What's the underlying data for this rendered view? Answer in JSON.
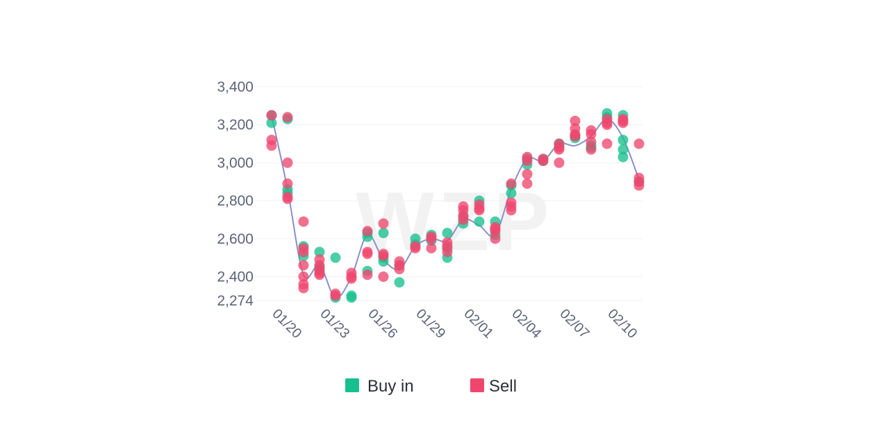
{
  "chart_data": {
    "type": "scatter",
    "title": "",
    "xlabel": "",
    "ylabel": "",
    "watermark": "WZP",
    "ylim": [
      2274,
      3400
    ],
    "yticks": [
      3400,
      3200,
      3000,
      2800,
      2600,
      2400,
      2274
    ],
    "ytick_labels": [
      "3,400",
      "3,200",
      "3,000",
      "2,800",
      "2,600",
      "2,400",
      "2,274"
    ],
    "xlim": [
      "01/20",
      "02/11"
    ],
    "xticks": [
      "01/20",
      "01/23",
      "01/26",
      "01/29",
      "02/01",
      "02/04",
      "02/07",
      "02/10"
    ],
    "grid": true,
    "legend_position": "bottom-center",
    "line": {
      "color": "#8a8fc9",
      "points": [
        [
          "01/20",
          3250
        ],
        [
          "01/21",
          2860
        ],
        [
          "01/22",
          2410
        ],
        [
          "01/23",
          2460
        ],
        [
          "01/24",
          2290
        ],
        [
          "01/25",
          2400
        ],
        [
          "01/26",
          2620
        ],
        [
          "01/27",
          2490
        ],
        [
          "01/28",
          2440
        ],
        [
          "01/29",
          2560
        ],
        [
          "01/30",
          2600
        ],
        [
          "01/31",
          2590
        ],
        [
          "02/01",
          2700
        ],
        [
          "02/02",
          2670
        ],
        [
          "02/03",
          2620
        ],
        [
          "02/04",
          2860
        ],
        [
          "02/05",
          3020
        ],
        [
          "02/06",
          3010
        ],
        [
          "02/07",
          3100
        ],
        [
          "02/08",
          3090
        ],
        [
          "02/09",
          3140
        ],
        [
          "02/10",
          3230
        ],
        [
          "02/11",
          3130
        ],
        [
          "02/12",
          2910
        ]
      ]
    },
    "series": [
      {
        "name": "Buy in",
        "color": "#18c08f",
        "points": [
          [
            "01/20",
            3210
          ],
          [
            "01/20",
            3250
          ],
          [
            "01/21",
            3230
          ],
          [
            "01/21",
            2840
          ],
          [
            "01/21",
            2860
          ],
          [
            "01/22",
            2560
          ],
          [
            "01/22",
            2510
          ],
          [
            "01/23",
            2530
          ],
          [
            "01/23",
            2450
          ],
          [
            "01/23",
            2430
          ],
          [
            "01/24",
            2500
          ],
          [
            "01/24",
            2290
          ],
          [
            "01/25",
            2300
          ],
          [
            "01/25",
            2290
          ],
          [
            "01/26",
            2610
          ],
          [
            "01/26",
            2630
          ],
          [
            "01/26",
            2430
          ],
          [
            "01/27",
            2630
          ],
          [
            "01/27",
            2500
          ],
          [
            "01/27",
            2480
          ],
          [
            "01/28",
            2370
          ],
          [
            "01/28",
            2460
          ],
          [
            "01/29",
            2600
          ],
          [
            "01/29",
            2570
          ],
          [
            "01/30",
            2620
          ],
          [
            "01/30",
            2590
          ],
          [
            "01/31",
            2630
          ],
          [
            "01/31",
            2500
          ],
          [
            "01/31",
            2550
          ],
          [
            "02/01",
            2680
          ],
          [
            "02/01",
            2720
          ],
          [
            "02/02",
            2800
          ],
          [
            "02/02",
            2690
          ],
          [
            "02/03",
            2690
          ],
          [
            "02/03",
            2620
          ],
          [
            "02/04",
            2840
          ],
          [
            "02/04",
            2880
          ],
          [
            "02/05",
            2990
          ],
          [
            "02/05",
            3020
          ],
          [
            "02/06",
            3020
          ],
          [
            "02/06",
            3010
          ],
          [
            "02/07",
            3090
          ],
          [
            "02/07",
            3100
          ],
          [
            "02/08",
            3140
          ],
          [
            "02/08",
            3130
          ],
          [
            "02/09",
            3090
          ],
          [
            "02/09",
            3080
          ],
          [
            "02/10",
            3260
          ],
          [
            "02/10",
            3240
          ],
          [
            "02/11",
            3250
          ],
          [
            "02/11",
            3120
          ],
          [
            "02/11",
            3070
          ],
          [
            "02/11",
            3030
          ],
          [
            "02/12",
            2900
          ]
        ]
      },
      {
        "name": "Sell",
        "color": "#f0466e",
        "points": [
          [
            "01/20",
            3250
          ],
          [
            "01/20",
            3120
          ],
          [
            "01/20",
            3090
          ],
          [
            "01/21",
            3240
          ],
          [
            "01/21",
            3000
          ],
          [
            "01/21",
            2890
          ],
          [
            "01/21",
            2820
          ],
          [
            "01/21",
            2810
          ],
          [
            "01/22",
            2690
          ],
          [
            "01/22",
            2550
          ],
          [
            "01/22",
            2530
          ],
          [
            "01/22",
            2460
          ],
          [
            "01/22",
            2400
          ],
          [
            "01/22",
            2360
          ],
          [
            "01/22",
            2340
          ],
          [
            "01/23",
            2490
          ],
          [
            "01/23",
            2460
          ],
          [
            "01/23",
            2440
          ],
          [
            "01/23",
            2420
          ],
          [
            "01/23",
            2410
          ],
          [
            "01/24",
            2310
          ],
          [
            "01/24",
            2300
          ],
          [
            "01/25",
            2420
          ],
          [
            "01/25",
            2400
          ],
          [
            "01/25",
            2390
          ],
          [
            "01/26",
            2640
          ],
          [
            "01/26",
            2530
          ],
          [
            "01/26",
            2520
          ],
          [
            "01/26",
            2410
          ],
          [
            "01/27",
            2680
          ],
          [
            "01/27",
            2520
          ],
          [
            "01/27",
            2510
          ],
          [
            "01/27",
            2400
          ],
          [
            "01/28",
            2480
          ],
          [
            "01/28",
            2460
          ],
          [
            "01/28",
            2440
          ],
          [
            "01/29",
            2560
          ],
          [
            "01/29",
            2550
          ],
          [
            "01/30",
            2610
          ],
          [
            "01/30",
            2600
          ],
          [
            "01/30",
            2550
          ],
          [
            "01/31",
            2580
          ],
          [
            "01/31",
            2560
          ],
          [
            "01/31",
            2530
          ],
          [
            "02/01",
            2770
          ],
          [
            "02/01",
            2750
          ],
          [
            "02/01",
            2720
          ],
          [
            "02/01",
            2700
          ],
          [
            "02/02",
            2780
          ],
          [
            "02/02",
            2760
          ],
          [
            "02/02",
            2750
          ],
          [
            "02/03",
            2660
          ],
          [
            "02/03",
            2650
          ],
          [
            "02/03",
            2640
          ],
          [
            "02/03",
            2600
          ],
          [
            "02/04",
            2890
          ],
          [
            "02/04",
            2790
          ],
          [
            "02/04",
            2770
          ],
          [
            "02/04",
            2750
          ],
          [
            "02/05",
            3030
          ],
          [
            "02/05",
            3010
          ],
          [
            "02/05",
            2940
          ],
          [
            "02/05",
            2890
          ],
          [
            "02/06",
            3020
          ],
          [
            "02/06",
            3010
          ],
          [
            "02/07",
            3100
          ],
          [
            "02/07",
            3080
          ],
          [
            "02/07",
            3070
          ],
          [
            "02/07",
            3000
          ],
          [
            "02/08",
            3220
          ],
          [
            "02/08",
            3180
          ],
          [
            "02/08",
            3150
          ],
          [
            "02/08",
            3140
          ],
          [
            "02/09",
            3170
          ],
          [
            "02/09",
            3150
          ],
          [
            "02/09",
            3110
          ],
          [
            "02/09",
            3070
          ],
          [
            "02/10",
            3230
          ],
          [
            "02/10",
            3210
          ],
          [
            "02/10",
            3200
          ],
          [
            "02/10",
            3100
          ],
          [
            "02/11",
            3230
          ],
          [
            "02/11",
            3220
          ],
          [
            "02/11",
            3210
          ],
          [
            "02/12",
            3100
          ],
          [
            "02/12",
            2920
          ],
          [
            "02/12",
            2900
          ],
          [
            "02/12",
            2880
          ]
        ]
      }
    ]
  }
}
